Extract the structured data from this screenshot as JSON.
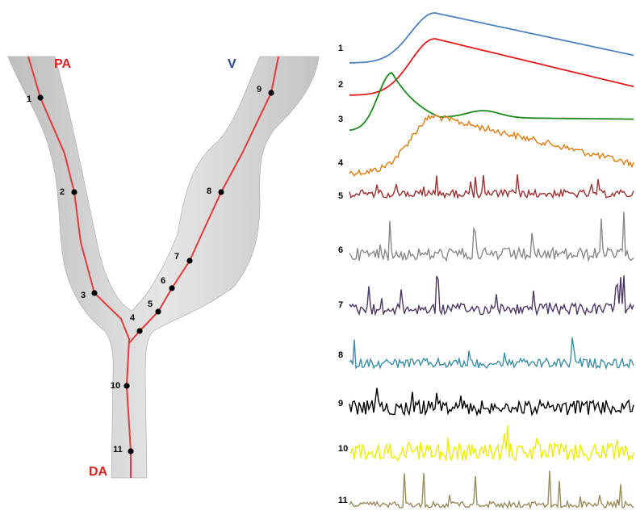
{
  "vessel_labels": [
    "PA",
    "V",
    "DA"
  ],
  "point_labels": [
    "1",
    "2",
    "3",
    "4",
    "5",
    "6",
    "7",
    "8",
    "9",
    "10",
    "11"
  ],
  "trace_labels": [
    "1",
    "2",
    "3",
    "4",
    "5",
    "6",
    "7",
    "8",
    "9",
    "10",
    "11"
  ]
}
